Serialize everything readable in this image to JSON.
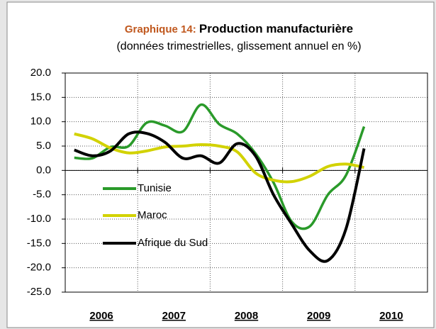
{
  "chart_data": {
    "type": "line",
    "title_prefix": "Graphique 14:",
    "title": "Production manufacturière",
    "subtitle": "(données trimestrielles, glissement annuel en %)",
    "x": [
      2006.125,
      2006.375,
      2006.625,
      2006.875,
      2007.125,
      2007.375,
      2007.625,
      2007.875,
      2008.125,
      2008.375,
      2008.625,
      2008.875,
      2009.125,
      2009.375,
      2009.625,
      2009.875,
      2010.125
    ],
    "xlim": [
      2006,
      2011
    ],
    "xticks": [
      2006,
      2007,
      2008,
      2009,
      2010
    ],
    "ylim": [
      -25,
      20
    ],
    "yticks": [
      {
        "value": -25,
        "label": "-25.0"
      },
      {
        "value": -20,
        "label": "-20.0"
      },
      {
        "value": -15,
        "label": "-15.0"
      },
      {
        "value": -10,
        "label": "-10.0"
      },
      {
        "value": -5,
        "label": "-5.0"
      },
      {
        "value": 0,
        "label": "0.0"
      },
      {
        "value": 5,
        "label": "5.0"
      },
      {
        "value": 10,
        "label": "10.0"
      },
      {
        "value": 15,
        "label": "15.0"
      },
      {
        "value": 20,
        "label": "20.0"
      }
    ],
    "grid": true,
    "series": [
      {
        "name": "Tunisie",
        "color": "#2a9a2a",
        "values": [
          2.6,
          2.5,
          4.8,
          5.0,
          9.8,
          9.2,
          8.0,
          13.5,
          9.5,
          7.5,
          3.5,
          -2.5,
          -10.5,
          -11.5,
          -5.0,
          -1.0,
          9.0
        ]
      },
      {
        "name": "Maroc",
        "color": "#d2d200",
        "values": [
          7.5,
          6.5,
          4.6,
          3.6,
          4.0,
          4.8,
          5.0,
          5.3,
          5.0,
          3.8,
          -0.5,
          -2.0,
          -2.3,
          -1.2,
          0.8,
          1.3,
          0.6
        ]
      },
      {
        "name": "Afrique du Sud",
        "color": "#000000",
        "values": [
          4.2,
          3.0,
          4.0,
          7.5,
          7.6,
          5.8,
          2.5,
          3.0,
          1.5,
          5.5,
          3.0,
          -5.0,
          -11.0,
          -16.5,
          -18.5,
          -12.0,
          4.5
        ]
      }
    ]
  }
}
